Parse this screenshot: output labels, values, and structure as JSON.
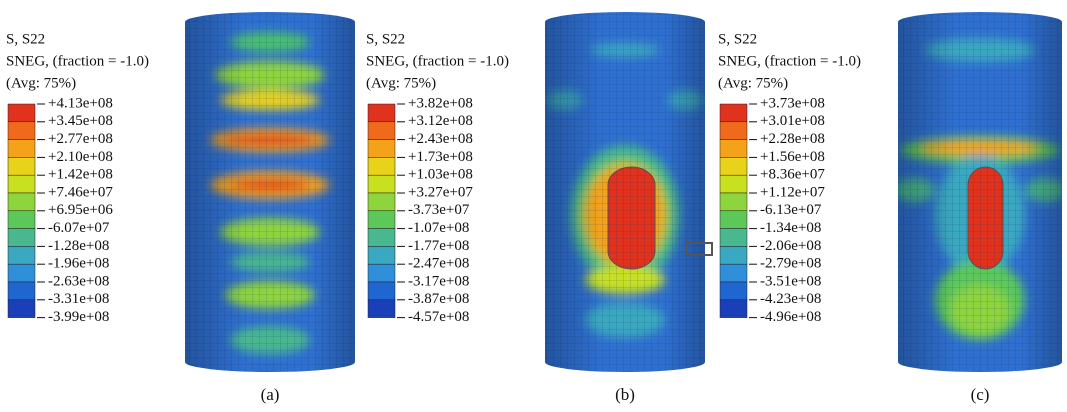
{
  "panels": [
    {
      "legend": {
        "title": [
          "S, S22",
          "SNEG, (fraction = -1.0)",
          "(Avg: 75%)"
        ],
        "labels": [
          "+4.13e+08",
          "+3.45e+08",
          "+2.77e+08",
          "+2.10e+08",
          "+1.42e+08",
          "+7.46e+07",
          "+6.95e+06",
          "-6.07e+07",
          "-1.28e+08",
          "-1.96e+08",
          "-2.63e+08",
          "-3.31e+08",
          "-3.99e+08"
        ]
      },
      "caption": "(a)"
    },
    {
      "legend": {
        "title": [
          "S, S22",
          "SNEG, (fraction = -1.0)",
          "(Avg: 75%)"
        ],
        "labels": [
          "+3.82e+08",
          "+3.12e+08",
          "+2.43e+08",
          "+1.73e+08",
          "+1.03e+08",
          "+3.27e+07",
          "-3.73e+07",
          "-1.07e+08",
          "-1.77e+08",
          "-2.47e+08",
          "-3.17e+08",
          "-3.87e+08",
          "-4.57e+08"
        ]
      },
      "caption": "(b)"
    },
    {
      "legend": {
        "title": [
          "S, S22",
          "SNEG, (fraction = -1.0)",
          "(Avg: 75%)"
        ],
        "labels": [
          "+3.73e+08",
          "+3.01e+08",
          "+2.28e+08",
          "+1.56e+08",
          "+8.36e+07",
          "+1.12e+07",
          "-6.13e+07",
          "-1.34e+08",
          "-2.06e+08",
          "-2.79e+08",
          "-3.51e+08",
          "-4.23e+08",
          "-4.96e+08"
        ]
      },
      "caption": "(c)"
    }
  ]
}
